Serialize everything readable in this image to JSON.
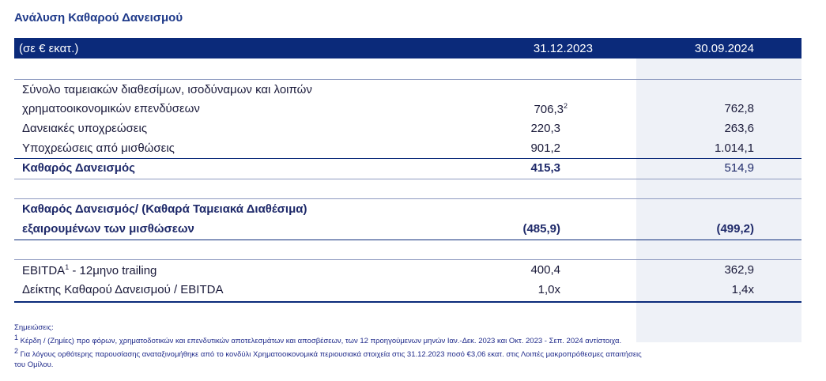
{
  "title": "Ανάλυση Καθαρού Δανεισμού",
  "header": {
    "unit": "(σε € εκατ.)",
    "col1": "31.12.2023",
    "col2": "30.09.2024"
  },
  "rows": {
    "cash_line1": "Σύνολο ταμειακών διαθεσίμων, ισοδύναμων και λοιπών",
    "cash_line2": "χρηματοοικονομικών επενδύσεων",
    "cash_v1": "706,3",
    "cash_v1_note": "2",
    "cash_v2": "762,8",
    "loans_label": "Δανειακές υποχρεώσεις",
    "loans_v1": "220,3",
    "loans_v2": "263,6",
    "lease_label": "Υποχρεώσεις από μισθώσεις",
    "lease_v1": "901,2",
    "lease_v2": "1.014,1",
    "net_label": "Καθαρός Δανεισμός",
    "net_v1": "415,3",
    "net_v2": "514,9",
    "netex_line1": "Καθαρός Δανεισμός/ (Καθαρά Ταμειακά Διαθέσιμα)",
    "netex_line2": "εξαιρουμένων των μισθώσεων",
    "netex_v1": "(485,9)",
    "netex_v2": "(499,2)",
    "ebitda_label_a": "EBITDA",
    "ebitda_note": "1",
    "ebitda_label_b": " - 12μηνο trailing",
    "ebitda_v1": "400,4",
    "ebitda_v2": "362,9",
    "ratio_label": "Δείκτης Καθαρού Δανεισμού / EBITDA",
    "ratio_v1": "1,0x",
    "ratio_v2": "1,4x"
  },
  "notes": {
    "heading": "Σημειώσεις:",
    "n1_mark": "1",
    "n1": " Κέρδη / (Ζημίες) προ φόρων, χρηματοδοτικών και επενδυτικών αποτελεσμάτων και αποσβέσεων, των 12 προηγούμενων μηνών Ιαν.-Δεκ. 2023 και Οκτ. 2023 - Σεπ. 2024 αντίστοιχα.",
    "n2_mark": "2",
    "n2": " Για λόγους ορθότερης παρουσίασης αναταξινομήθηκε από το κονδύλι Χρηματοοικονομικά περιουσιακά στοιχεία στις 31.12.2023 ποσό €3,06 εκατ. στις Λοιπές μακροπρόθεσμες απαιτήσεις",
    "n2_cont": "του Ομίλου."
  }
}
